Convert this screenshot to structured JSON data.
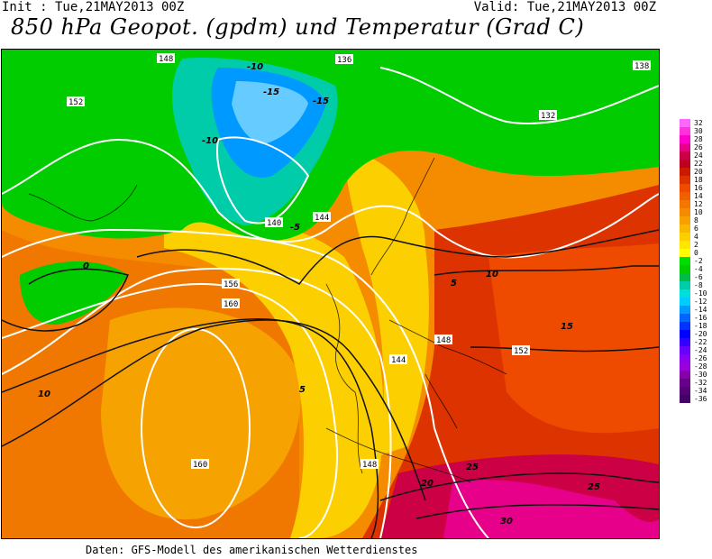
{
  "header": {
    "init": "Init : Tue,21MAY2013 00Z",
    "valid": "Valid: Tue,21MAY2013 00Z",
    "title": "850 hPa Geopot. (gpdm) und Temperatur (Grad C)"
  },
  "footer": "Daten: GFS-Modell des amerikanischen Wetterdienstes",
  "legend": {
    "labels": [
      "32",
      "30",
      "28",
      "26",
      "24",
      "22",
      "20",
      "18",
      "16",
      "14",
      "12",
      "10",
      "8",
      "6",
      "4",
      "2",
      "0",
      "-2",
      "-4",
      "-6",
      "-8",
      "-10",
      "-12",
      "-14",
      "-16",
      "-18",
      "-20",
      "-22",
      "-24",
      "-26",
      "-28",
      "-30",
      "-32",
      "-34",
      "-36"
    ],
    "colors": [
      "#ff66ff",
      "#ff33dd",
      "#ff00cc",
      "#e6008a",
      "#cc0044",
      "#bb0022",
      "#cc1a00",
      "#dd3300",
      "#ee4a00",
      "#f06000",
      "#f47800",
      "#f58c00",
      "#f7a000",
      "#f9b800",
      "#fcd000",
      "#ffe600",
      "#ffff00",
      "#00dd00",
      "#00cc00",
      "#00bb44",
      "#00ccaa",
      "#00dddd",
      "#00ccff",
      "#0099ff",
      "#0066ff",
      "#0033ff",
      "#0000ff",
      "#3300ff",
      "#6600ff",
      "#8800ee",
      "#9900dd",
      "#8800aa",
      "#660088",
      "#550077",
      "#440066"
    ]
  },
  "map_labels": {
    "geopotential": [
      "148",
      "136",
      "138",
      "152",
      "144",
      "140",
      "156",
      "160",
      "148",
      "144",
      "132",
      "152",
      "160",
      "148"
    ],
    "temperature": [
      "-10",
      "-15",
      "-5",
      "0",
      "5",
      "10",
      "15",
      "20",
      "25",
      "30",
      "-15",
      "-10",
      "5",
      "10",
      "25"
    ]
  }
}
